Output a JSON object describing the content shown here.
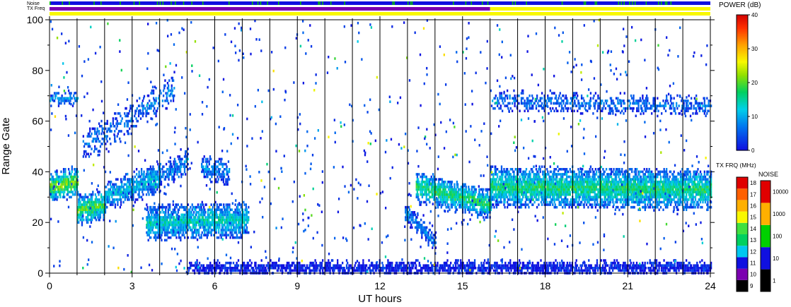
{
  "top_strips": {
    "noise_label": "Noise",
    "txfreq_label": "TX Freq"
  },
  "chart_data": {
    "type": "heatmap",
    "xlabel": "UT hours",
    "ylabel": "Range Gate",
    "xlim": [
      0,
      24
    ],
    "ylim": [
      0,
      100
    ],
    "x_ticks": [
      "0",
      "3",
      "6",
      "9",
      "12",
      "15",
      "18",
      "21",
      "24"
    ],
    "y_ticks": [
      "0",
      "20",
      "40",
      "60",
      "80",
      "100"
    ],
    "hour_separators": true,
    "power_colorbar": {
      "title": "POWER (dB)",
      "min": 0,
      "max": 40,
      "ticks": [
        "0",
        "10",
        "20",
        "30",
        "40"
      ]
    },
    "txfreq_colorbar": {
      "title": "TX FRQ (MHz)",
      "labels": [
        "9",
        "10",
        "11",
        "12",
        "13",
        "14",
        "15",
        "16",
        "17",
        "18"
      ],
      "colors": [
        "#000000",
        "#7b00b0",
        "#1010e0",
        "#00c8f0",
        "#00d060",
        "#40e040",
        "#f8f800",
        "#ffb000",
        "#ff6000",
        "#e00000"
      ]
    },
    "noise_colorbar": {
      "title": "NOISE",
      "labels": [
        "1",
        "10",
        "100",
        "1000",
        "10000"
      ],
      "colors": [
        "#000000",
        "#1010e0",
        "#00d000",
        "#ffb000",
        "#e00000"
      ]
    },
    "tx_freq_strip": [
      {
        "start": 0,
        "end": 16,
        "color": "#7b00b0"
      },
      {
        "start": 16,
        "end": 24,
        "color": "#f8f800"
      }
    ],
    "scatter_bands": [
      {
        "t0": 0.0,
        "t1": 1.0,
        "g0": 34,
        "g1": 36,
        "width": 5,
        "power": 22,
        "density": 0.9
      },
      {
        "t0": 1.0,
        "t1": 2.0,
        "g0": 25,
        "g1": 27,
        "width": 5,
        "power": 20,
        "density": 0.9
      },
      {
        "t0": 2.0,
        "t1": 4.0,
        "g0": 30,
        "g1": 38,
        "width": 5,
        "power": 12,
        "density": 0.75
      },
      {
        "t0": 4.0,
        "t1": 5.0,
        "g0": 38,
        "g1": 44,
        "width": 4,
        "power": 8,
        "density": 0.6
      },
      {
        "t0": 3.5,
        "t1": 7.2,
        "g0": 20,
        "g1": 21,
        "width": 6,
        "power": 14,
        "density": 0.85
      },
      {
        "t0": 13.3,
        "t1": 16.0,
        "g0": 34,
        "g1": 27,
        "width": 5,
        "power": 18,
        "density": 0.85
      },
      {
        "t0": 12.9,
        "t1": 14.0,
        "g0": 24,
        "g1": 12,
        "width": 3,
        "power": 8,
        "density": 0.7
      },
      {
        "t0": 16.0,
        "t1": 24.0,
        "g0": 34,
        "g1": 33,
        "width": 7,
        "power": 17,
        "density": 0.9
      },
      {
        "t0": 16.0,
        "t1": 24.0,
        "g0": 68,
        "g1": 66,
        "width": 3,
        "power": 7,
        "density": 0.45
      },
      {
        "t0": 0.0,
        "t1": 1.0,
        "g0": 69,
        "g1": 69,
        "width": 2,
        "power": 10,
        "density": 0.55
      },
      {
        "t0": 1.2,
        "t1": 4.5,
        "g0": 50,
        "g1": 72,
        "width": 5,
        "power": 7,
        "density": 0.35
      },
      {
        "t0": 5.5,
        "t1": 6.5,
        "g0": 42,
        "g1": 40,
        "width": 4,
        "power": 8,
        "density": 0.6
      },
      {
        "t0": 5.0,
        "t1": 24.0,
        "g0": 2,
        "g1": 2,
        "width": 2,
        "power": 1,
        "density": 0.75
      }
    ]
  }
}
